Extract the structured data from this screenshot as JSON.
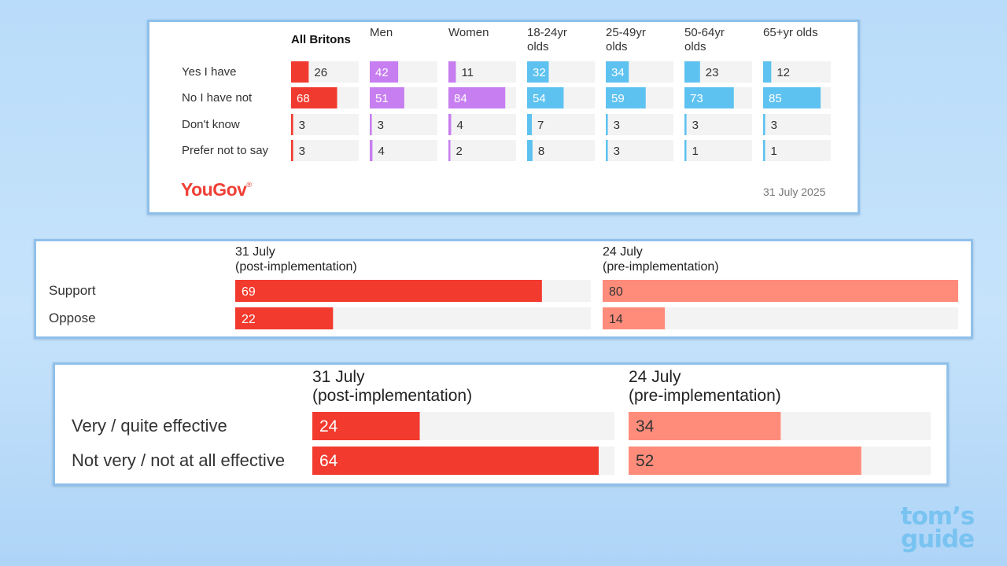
{
  "chart_data": [
    {
      "type": "bar",
      "columns": [
        "All Britons",
        "Men",
        "Women",
        "18-24yr olds",
        "25-49yr olds",
        "50-64yr olds",
        "65+yr olds"
      ],
      "categories": [
        "Yes I have",
        "No I have not",
        "Don't know",
        "Prefer not to say"
      ],
      "series": [
        {
          "name": "All Britons",
          "values": [
            26,
            68,
            3,
            3
          ]
        },
        {
          "name": "Men",
          "values": [
            42,
            51,
            3,
            4
          ]
        },
        {
          "name": "Women",
          "values": [
            11,
            84,
            4,
            2
          ]
        },
        {
          "name": "18-24yr olds",
          "values": [
            32,
            54,
            7,
            8
          ]
        },
        {
          "name": "25-49yr olds",
          "values": [
            34,
            59,
            3,
            3
          ]
        },
        {
          "name": "50-64yr olds",
          "values": [
            23,
            73,
            3,
            1
          ]
        },
        {
          "name": "65+yr olds",
          "values": [
            12,
            85,
            3,
            1
          ]
        }
      ],
      "colors": [
        "#f03a2f",
        "#c77ef0",
        "#c77ef0",
        "#5ec2f0",
        "#5ec2f0",
        "#5ec2f0",
        "#5ec2f0"
      ],
      "track_color": "#f3f3f3",
      "xlim": [
        0,
        100
      ],
      "brand": "YouGov",
      "date": "31 July 2025"
    },
    {
      "type": "bar",
      "categories": [
        "Support",
        "Oppose"
      ],
      "series": [
        {
          "name": "31 July\n(post-implementation)",
          "values": [
            69,
            22
          ]
        },
        {
          "name": "24 July\n(pre-implementation)",
          "values": [
            80,
            14
          ]
        }
      ],
      "colors": [
        "#f23a2e",
        "#ff8c7b"
      ],
      "track_color": "#f3f3f3",
      "xlim": [
        0,
        80
      ]
    },
    {
      "type": "bar",
      "categories": [
        "Very / quite effective",
        "Not very / not at all effective"
      ],
      "series": [
        {
          "name": "31 July\n(post-implementation)",
          "values": [
            24,
            64
          ]
        },
        {
          "name": "24 July\n(pre-implementation)",
          "values": [
            34,
            52
          ]
        }
      ],
      "colors": [
        "#f23a2e",
        "#ff8c7b"
      ],
      "track_color": "#f3f3f3",
      "xlim": [
        0,
        80
      ]
    }
  ],
  "watermark": {
    "line1": "tom’s",
    "line2": "guide"
  }
}
